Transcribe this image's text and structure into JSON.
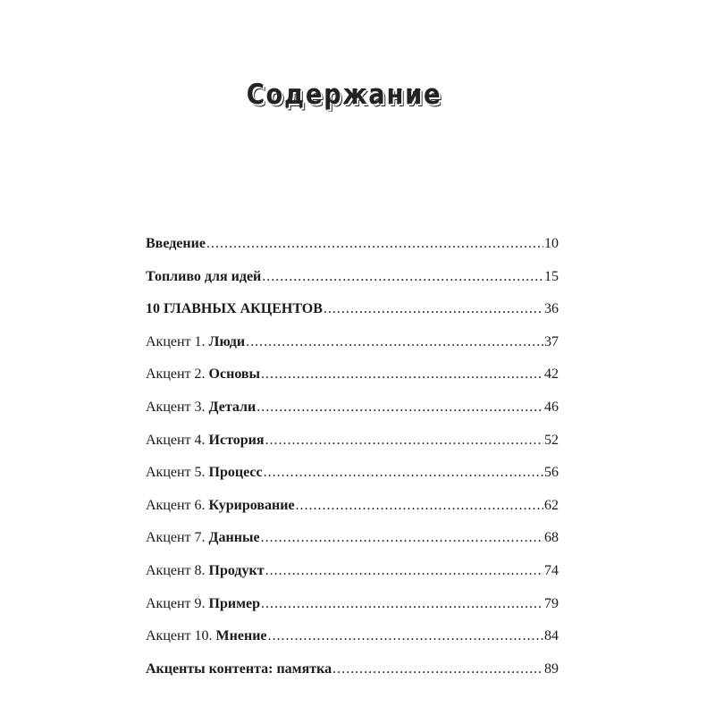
{
  "title": "Содержание",
  "entries": [
    {
      "prefix": "",
      "label": "Введение",
      "page": "10"
    },
    {
      "prefix": "",
      "label": "Топливо для идей",
      "page": "15"
    },
    {
      "prefix": "",
      "label": "10 ГЛАВНЫХ АКЦЕНТОВ",
      "page": "36"
    },
    {
      "prefix": "Акцент 1. ",
      "label": "Люди",
      "page": "37"
    },
    {
      "prefix": "Акцент 2. ",
      "label": "Основы",
      "page": "42"
    },
    {
      "prefix": "Акцент 3. ",
      "label": "Детали",
      "page": "46"
    },
    {
      "prefix": "Акцент 4. ",
      "label": "История",
      "page": "52"
    },
    {
      "prefix": "Акцент 5. ",
      "label": "Процесс",
      "page": "56"
    },
    {
      "prefix": "Акцент 6. ",
      "label": "Курирование",
      "page": "62"
    },
    {
      "prefix": "Акцент 7. ",
      "label": "Данные",
      "page": "68"
    },
    {
      "prefix": "Акцент 8. ",
      "label": "Продукт",
      "page": "74"
    },
    {
      "prefix": "Акцент 9. ",
      "label": "Пример",
      "page": "79"
    },
    {
      "prefix": "Акцент 10. ",
      "label": "Мнение",
      "page": "84"
    },
    {
      "prefix": "",
      "label": "Акценты контента: памятка",
      "page": "89"
    }
  ]
}
